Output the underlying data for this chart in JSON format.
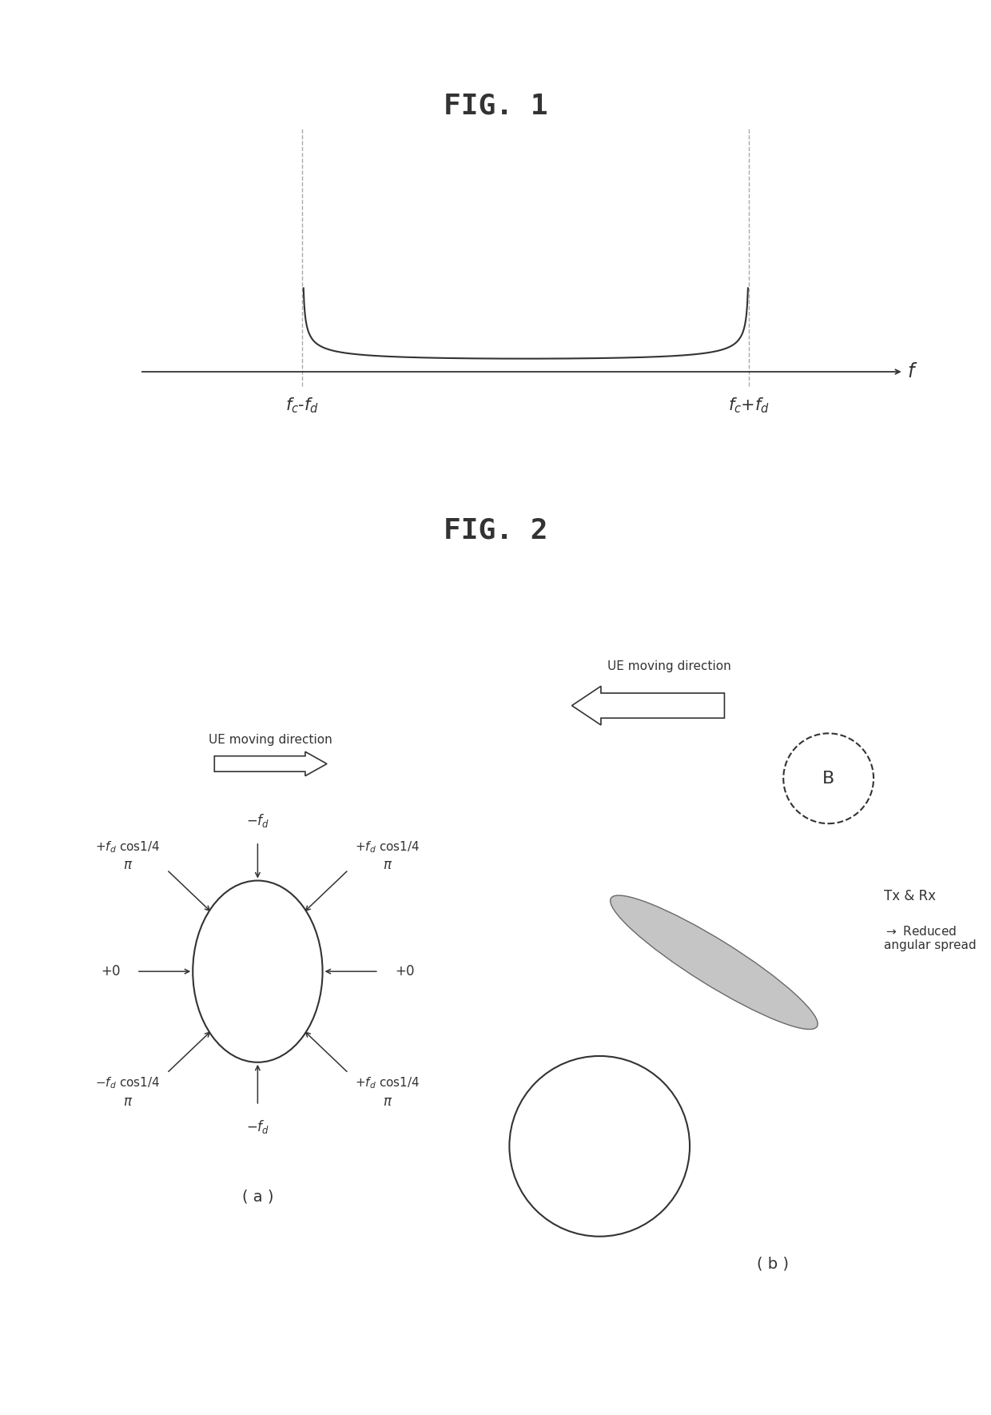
{
  "fig1_title": "FIG. 1",
  "fig2_title": "FIG. 2",
  "fig1_xlabel": "f",
  "curve_color": "#333333",
  "axis_color": "#333333",
  "dashed_color": "#aaaaaa",
  "bg_color": "#ffffff",
  "fig2a_label": "( a )",
  "fig2b_label": "( b )",
  "beam_facecolor": "#bbbbbb",
  "beam_edgecolor": "#555555"
}
